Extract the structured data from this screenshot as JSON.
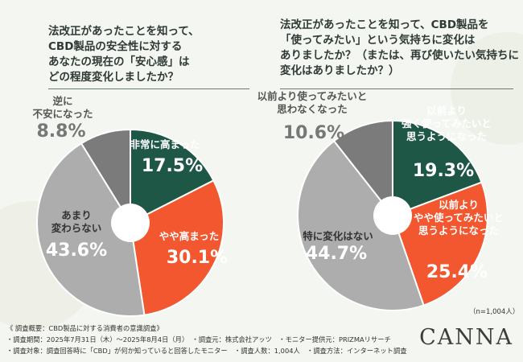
{
  "chart_data": [
    {
      "type": "pie",
      "title": "法改正があったことを知って、\nCBD製品の安全性に対する\nあなたの現在の「安心感」は\nどの程度変化しましたか？",
      "categories": [
        "非常に高まった",
        "やや高まった",
        "あまり\n変わらない",
        "逆に\n不安になった"
      ],
      "values": [
        17.5,
        30.1,
        43.6,
        8.8
      ],
      "value_labels": [
        "17.5%",
        "30.1%",
        "43.6%",
        "8.8%"
      ],
      "colors": [
        "#1e5745",
        "#f2572f",
        "#adadad",
        "#7b7b7b"
      ]
    },
    {
      "type": "pie",
      "title": "法改正があったことを知って、CBD製品を\n「使ってみたい」という気持ちに変化は\nありましたか？（または、再び使いたい気持ちに\n変化はありましたか？）",
      "categories": [
        "以前より\n強く使ってみたいと\n思うようになった",
        "以前より\nやや使ってみたいと\n思うようになった",
        "特に変化はない",
        "以前より使ってみたいと\n思わなくなった"
      ],
      "values": [
        19.3,
        25.4,
        44.7,
        10.6
      ],
      "value_labels": [
        "19.3%",
        "25.4%",
        "44.7%",
        "10.6%"
      ],
      "colors": [
        "#1e5745",
        "#f2572f",
        "#adadad",
        "#7b7b7b"
      ]
    }
  ],
  "sample_note": "（n=1,004人）",
  "footer": {
    "line1": "《 調査概要：CBD製品に対する消費者の意識調査》",
    "line2": "・調査期間：2025年7月31日（木）～2025年8月4日（月）　・調査元：株式会社アッツ　・モニター提供元：PRIZMAリサーチ",
    "line3": "・調査対象：調査回答時に「CBD」が何か知っていると回答したモニター　・調査人数：1,004人　・調査方法：インターネット調査"
  },
  "brand": "CANNA"
}
